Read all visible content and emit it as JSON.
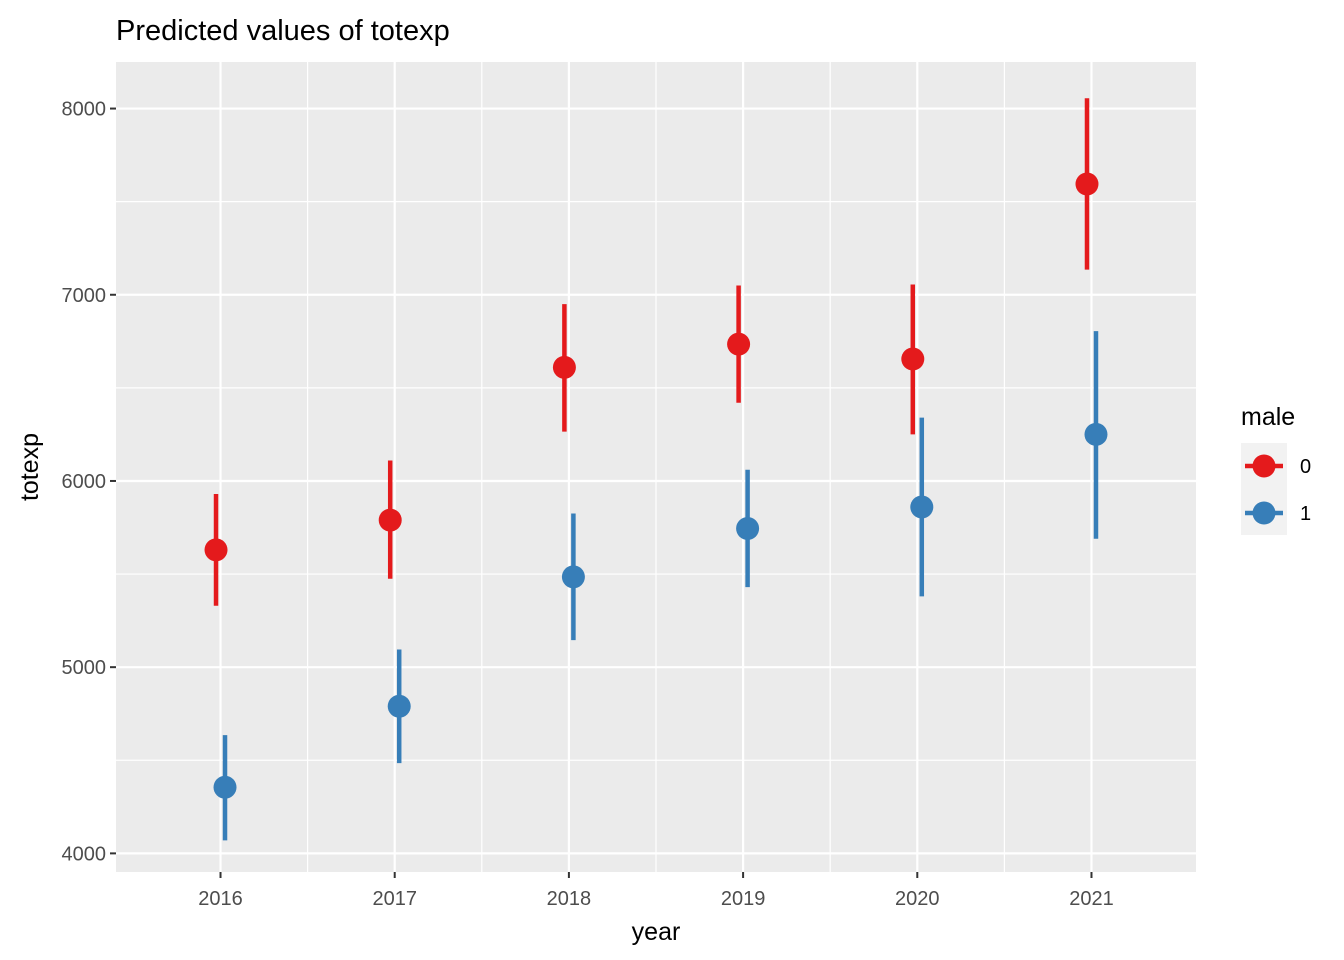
{
  "chart_data": {
    "type": "scatter",
    "title": "Predicted values of totexp",
    "xlabel": "year",
    "ylabel": "totexp",
    "categories": [
      "2016",
      "2017",
      "2018",
      "2019",
      "2020",
      "2021"
    ],
    "ylim": [
      3900,
      8250
    ],
    "yticks": [
      4000,
      5000,
      6000,
      7000,
      8000
    ],
    "grid": true,
    "legend": {
      "title": "male",
      "placement": "right"
    },
    "series": [
      {
        "name": "0",
        "color": "#E41A1C",
        "values": [
          5630,
          5790,
          6610,
          6735,
          6655,
          7595
        ],
        "lower": [
          5330,
          5475,
          6265,
          6420,
          6250,
          7135
        ],
        "upper": [
          5930,
          6110,
          6950,
          7050,
          7055,
          8055
        ]
      },
      {
        "name": "1",
        "color": "#377EB8",
        "values": [
          4355,
          4790,
          5485,
          5745,
          5860,
          6250
        ],
        "lower": [
          4070,
          4485,
          5145,
          5430,
          5380,
          5690
        ],
        "upper": [
          4635,
          5095,
          5825,
          6060,
          6340,
          6805
        ]
      }
    ]
  }
}
